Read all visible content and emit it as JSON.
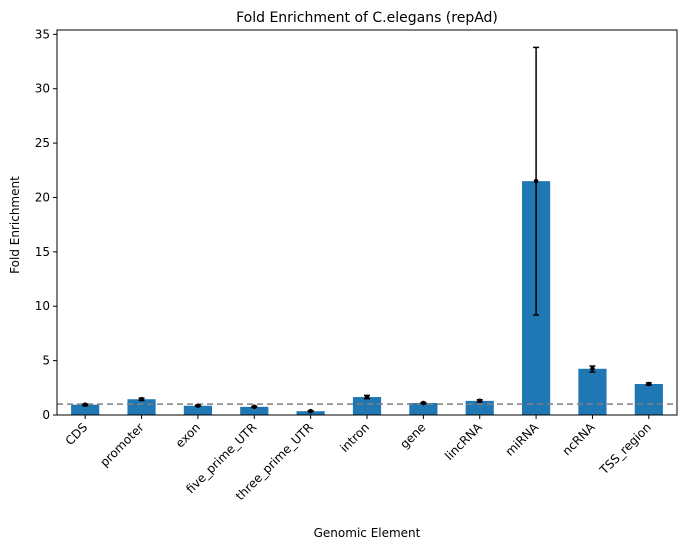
{
  "chart_data": {
    "type": "bar",
    "title": "Fold Enrichment of C.elegans (repAd)",
    "xlabel": "Genomic Element",
    "ylabel": "Fold Enrichment",
    "categories": [
      "CDS",
      "promoter",
      "exon",
      "five_prime_UTR",
      "three_prime_UTR",
      "intron",
      "gene",
      "lincRNA",
      "miRNA",
      "ncRNA",
      "TSS_region"
    ],
    "values": [
      0.95,
      1.45,
      0.85,
      0.75,
      0.35,
      1.65,
      1.1,
      1.3,
      21.5,
      4.25,
      2.85
    ],
    "error_low": [
      0.85,
      1.35,
      0.8,
      0.7,
      0.3,
      1.5,
      1.05,
      1.2,
      9.2,
      3.95,
      2.75
    ],
    "error_high": [
      1.0,
      1.55,
      0.9,
      0.8,
      0.4,
      1.8,
      1.15,
      1.4,
      33.8,
      4.5,
      2.95
    ],
    "reference_line": 1.0,
    "ylim": [
      0,
      35.4
    ],
    "yticks": [
      0,
      5,
      10,
      15,
      20,
      25,
      30,
      35
    ],
    "grid": false,
    "colors": {
      "bar": "#1f77b4",
      "marker": "#000000",
      "reference_line": "#808080"
    }
  }
}
